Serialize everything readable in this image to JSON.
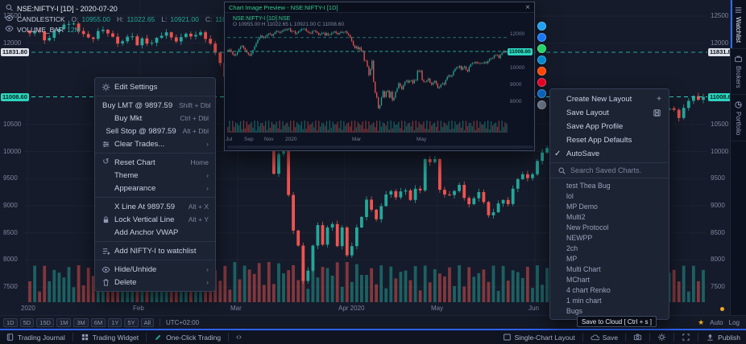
{
  "colors": {
    "green": "#26a69a",
    "red": "#ef5350",
    "teal": "#2dd4bf",
    "blue": "#2d62f5",
    "orange": "#f5a623"
  },
  "header": {
    "symbol_title": "NSE:NIFTY-I [1D] - 2020-07-20",
    "series_label": "CANDLESTICK",
    "ohlc": {
      "o_label": "O:",
      "o": "10955.00",
      "h_label": "H:",
      "h": "11022.65",
      "l_label": "L:",
      "l": "10921.00",
      "c_label": "C:",
      "c": "11008.60"
    },
    "volume_label": "VOLUME_BAR",
    "volume_value": "12M"
  },
  "price_axis": {
    "labels": [
      12500,
      12000,
      10500,
      10000,
      9500,
      9000,
      8500,
      8000,
      7500
    ],
    "tag_white": "11831.80",
    "tag_white_price": 11831.8,
    "tag_teal": "11008.60",
    "tag_teal_price": 11008.6
  },
  "chart": {
    "type": "candlestick",
    "symbol": "NSE:NIFTY-I",
    "interval": "1D",
    "closes": [
      12182,
      12226,
      12216,
      12052,
      12098,
      12215,
      12262,
      12343,
      12355,
      12362,
      12224,
      12169,
      12106,
      12080,
      12224,
      12248,
      12180,
      12119,
      11993,
      12035,
      12119,
      12126,
      11962,
      12089,
      11993,
      12008,
      12098,
      12138,
      12201,
      12107,
      12031,
      12113,
      12174,
      12125,
      12152,
      12201,
      12080,
      11992,
      11829,
      11633,
      11380,
      11201,
      11303,
      11132,
      11251,
      11036,
      10989,
      10458,
      10451,
      10116,
      9590,
      9955,
      10458,
      9197,
      8541,
      8263,
      7610,
      7801,
      8263,
      8641,
      8281,
      8598,
      8660,
      8254,
      8598,
      8084,
      8254,
      8598,
      8792,
      9112,
      8926,
      8749,
      8993,
      9206,
      9267,
      9154,
      9262,
      9282,
      9106,
      9313,
      9282,
      9859,
      9803,
      9860,
      9294,
      9206,
      9196,
      9270,
      9384,
      9143,
      9027,
      9137,
      9251,
      9067,
      8823,
      8879,
      9040,
      9106,
      9030,
      9314,
      9490,
      9580,
      9509,
      9580,
      9826,
      9980,
      10062,
      10029,
      10142,
      9914,
      10046,
      10116,
      9902,
      9814,
      10091,
      10244,
      10311,
      10305,
      10383,
      10312,
      10289,
      10313,
      10302,
      10312,
      10383,
      10302,
      10430,
      10552,
      10607,
      10600,
      10764,
      10800,
      10768,
      10618,
      10805,
      10935,
      11022,
      10955,
      11008
    ],
    "x_labels": [
      {
        "label": "2020",
        "idx": 0
      },
      {
        "label": "Feb",
        "idx": 23
      },
      {
        "label": "Mar",
        "idx": 43
      },
      {
        "label": "Apr 2020",
        "idx": 65
      },
      {
        "label": "May",
        "idx": 84
      },
      {
        "label": "Jun",
        "idx": 104
      }
    ]
  },
  "side_tabs": [
    {
      "label": "Watchlist",
      "icon": "rows",
      "active": true
    },
    {
      "label": "Brokers",
      "icon": "case",
      "active": false
    },
    {
      "label": "Portfolio",
      "icon": "pie",
      "active": false
    }
  ],
  "context_menu": {
    "items": [
      {
        "icon": "gear",
        "label": "Edit Settings"
      },
      {
        "divider": true
      },
      {
        "label": "Buy LMT @ 9897.59",
        "hint": "Shift + Dbl"
      },
      {
        "label": "Buy Mkt",
        "hint": "Ctrl + Dbl"
      },
      {
        "label": "Sell Stop @ 9897.59",
        "hint": "Alt + Dbl"
      },
      {
        "icon": "sliders",
        "label": "Clear Trades...",
        "hint": "›"
      },
      {
        "divider": true
      },
      {
        "icon": "reset",
        "label": "Reset Chart",
        "hint": "Home"
      },
      {
        "label": "Theme",
        "hint": "›"
      },
      {
        "label": "Appearance",
        "hint": "›"
      },
      {
        "divider": true
      },
      {
        "label": "X Line At 9897.59",
        "hint": "Alt + X"
      },
      {
        "icon": "lock",
        "label": "Lock Vertical Line",
        "hint": "Alt + Y"
      },
      {
        "label": "Add Anchor VWAP"
      },
      {
        "divider": true
      },
      {
        "icon": "listplus",
        "label": "Add NIFTY-I to watchlist"
      },
      {
        "divider": true
      },
      {
        "icon": "eye",
        "label": "Hide/Unhide",
        "hint": "›"
      },
      {
        "icon": "trash",
        "label": "Delete",
        "hint": "›"
      }
    ]
  },
  "layout_menu": {
    "items": [
      {
        "label": "Create New Layout",
        "right_icon": "plus"
      },
      {
        "label": "Save Layout",
        "right_icon": "save"
      },
      {
        "label": "Save App Profile"
      },
      {
        "label": "Reset App Defaults"
      },
      {
        "label": "AutoSave",
        "left_icon": "check"
      }
    ],
    "search_placeholder": "Search Saved Charts.",
    "saved_charts": [
      "test Thea Bug",
      "lol",
      "MP Demo",
      "Multi2",
      "New Protocol",
      "NEWPP",
      "2ch",
      "MP",
      "Multi Chart",
      "MChart",
      "4 chart Renko",
      "1 min chart",
      "Bugs"
    ]
  },
  "popup": {
    "title": "Chart Image Preview - NSE:NIFTY-I [1D]",
    "legend1": "NSE:NIFTY-I [1D] NSE",
    "legend2": "O 10955.00  H 11022.65  L 10921.00  C 11008.60",
    "x_labels": [
      {
        "label": "Jul",
        "idx": 2
      },
      {
        "label": "Sep",
        "idx": 14
      },
      {
        "label": "Nov",
        "idx": 27
      },
      {
        "label": "2020",
        "idx": 40
      },
      {
        "label": "Mar",
        "idx": 83
      },
      {
        "label": "May",
        "idx": 124
      }
    ],
    "axis_labels": [
      12000,
      11000,
      10000,
      9000,
      8000
    ],
    "price_tag": "11008.60",
    "pre_closes": [
      11050,
      11120,
      10980,
      10850,
      10760,
      10820,
      11000,
      11150,
      11280,
      11350,
      11200,
      11080,
      10950,
      10840,
      10760,
      10900,
      11100,
      11300,
      11500,
      11700,
      11850,
      11950,
      11880,
      11820,
      11900,
      12000,
      12080,
      12020,
      11950,
      12050,
      12150,
      12220,
      12180,
      12120,
      12180,
      12260,
      12320,
      12280,
      12340,
      12380
    ],
    "share_icons": [
      {
        "name": "twitter",
        "color": "#1da1f2"
      },
      {
        "name": "facebook",
        "color": "#1877f2"
      },
      {
        "name": "whatsapp",
        "color": "#25d366"
      },
      {
        "name": "telegram",
        "color": "#0088cc"
      },
      {
        "name": "reddit",
        "color": "#ff4500"
      },
      {
        "name": "pinterest",
        "color": "#e60023"
      },
      {
        "name": "linkedin",
        "color": "#0a66c2"
      },
      {
        "name": "email",
        "color": "#6b7687"
      }
    ]
  },
  "tooltip": {
    "text": "Save to Cloud [ Ctrl + s ]"
  },
  "timeframe_bar": {
    "buttons": [
      "1D",
      "5D",
      "15D",
      "1M",
      "3M",
      "6M",
      "1Y",
      "5Y",
      "All"
    ],
    "timezone": "UTC+02:00",
    "right_labels": [
      "Auto",
      "Log"
    ]
  },
  "status_bar": {
    "left": [
      {
        "icon": "journal",
        "label": "Trading Journal"
      },
      {
        "icon": "widget",
        "label": "Trading Widget"
      },
      {
        "icon": "pencil",
        "label": "One-Click Trading",
        "color": "#26a69a"
      },
      {
        "icon": "code",
        "label": ""
      }
    ],
    "right": [
      {
        "icon": "layoutgrid",
        "label": "Single-Chart Layout"
      },
      {
        "icon": "cloud",
        "label": "Save"
      },
      {
        "icon": "camera",
        "label": ""
      },
      {
        "icon": "gear",
        "label": ""
      },
      {
        "icon": "expand",
        "label": ""
      },
      {
        "icon": "publish",
        "label": "Publish"
      }
    ]
  }
}
